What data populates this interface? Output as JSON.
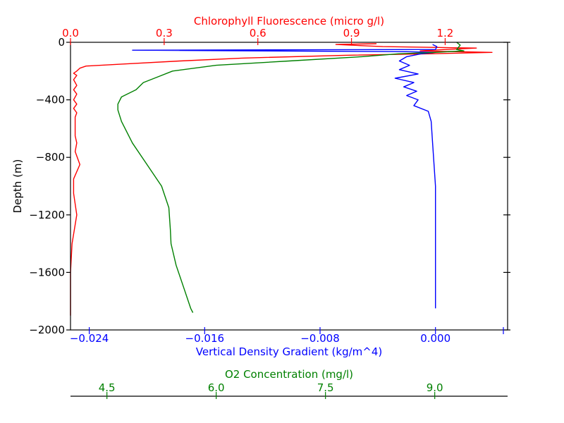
{
  "chart_data": {
    "type": "line",
    "y_axis": {
      "label": "Depth (m)",
      "range": [
        -2000,
        0
      ],
      "ticks": [
        -2000,
        -1600,
        -1200,
        -800,
        -400,
        0
      ],
      "tick_labels": [
        "−2000",
        "−1600",
        "−1200",
        "−800",
        "−400",
        "0"
      ]
    },
    "x_axes": [
      {
        "id": "chl",
        "label": "Chlorophyll Fluorescence (micro g/l)",
        "position": "top",
        "color": "#ff0000",
        "range": [
          0.0,
          1.4
        ],
        "ticks": [
          0.0,
          0.3,
          0.6,
          0.9,
          1.2
        ],
        "tick_labels": [
          "0.0",
          "0.3",
          "0.6",
          "0.9",
          "1.2"
        ]
      },
      {
        "id": "density",
        "label": "Vertical Density Gradient (kg/m^4)",
        "position": "bottom",
        "color": "#0000ff",
        "range": [
          -0.0253,
          0.005
        ],
        "ticks": [
          -0.024,
          -0.016,
          -0.008,
          0.0
        ],
        "tick_labels": [
          "−0.024",
          "−0.016",
          "−0.008",
          "0.000"
        ]
      },
      {
        "id": "o2",
        "label": "O2 Concentration (mg/l)",
        "position": "bottom-offset",
        "color": "#008000",
        "range": [
          4.0,
          10.0
        ],
        "ticks": [
          4.5,
          6.0,
          7.5,
          9.0
        ],
        "tick_labels": [
          "4.5",
          "6.0",
          "7.5",
          "9.0"
        ]
      }
    ],
    "series": [
      {
        "axis": "chl",
        "color": "#ff0000",
        "points": [
          [
            0.98,
            -10
          ],
          [
            0.85,
            -15
          ],
          [
            1.0,
            -30
          ],
          [
            1.3,
            -40
          ],
          [
            1.2,
            -50
          ],
          [
            1.12,
            -60
          ],
          [
            1.35,
            -70
          ],
          [
            1.15,
            -80
          ],
          [
            0.88,
            -90
          ],
          [
            0.55,
            -110
          ],
          [
            0.35,
            -130
          ],
          [
            0.18,
            -150
          ],
          [
            0.05,
            -165
          ],
          [
            0.03,
            -180
          ],
          [
            0.02,
            -200
          ],
          [
            0.01,
            -215
          ],
          [
            0.02,
            -230
          ],
          [
            0.01,
            -260
          ],
          [
            0.02,
            -300
          ],
          [
            0.01,
            -330
          ],
          [
            0.02,
            -360
          ],
          [
            0.01,
            -400
          ],
          [
            0.02,
            -430
          ],
          [
            0.01,
            -460
          ],
          [
            0.02,
            -490
          ],
          [
            0.015,
            -520
          ],
          [
            0.015,
            -650
          ],
          [
            0.02,
            -700
          ],
          [
            0.015,
            -760
          ],
          [
            0.03,
            -850
          ],
          [
            0.01,
            -950
          ],
          [
            0.01,
            -1050
          ],
          [
            0.02,
            -1200
          ],
          [
            0.005,
            -1400
          ],
          [
            0.0,
            -1600
          ],
          [
            0.0,
            -1900
          ]
        ]
      },
      {
        "axis": "density",
        "color": "#0000ff",
        "points": [
          [
            -0.0002,
            -15
          ],
          [
            0.0001,
            -30
          ],
          [
            0.0,
            -50
          ],
          [
            -0.021,
            -55
          ],
          [
            -0.002,
            -65
          ],
          [
            0.0,
            -70
          ],
          [
            -0.001,
            -80
          ],
          [
            -0.002,
            -100
          ],
          [
            -0.0025,
            -130
          ],
          [
            -0.0018,
            -160
          ],
          [
            -0.0025,
            -190
          ],
          [
            -0.0012,
            -220
          ],
          [
            -0.0028,
            -250
          ],
          [
            -0.0015,
            -280
          ],
          [
            -0.0022,
            -310
          ],
          [
            -0.0013,
            -340
          ],
          [
            -0.002,
            -370
          ],
          [
            -0.0012,
            -400
          ],
          [
            -0.0015,
            -440
          ],
          [
            -0.0005,
            -480
          ],
          [
            -0.0003,
            -550
          ],
          [
            -0.0002,
            -700
          ],
          [
            0.0,
            -1000
          ],
          [
            0.0,
            -1500
          ],
          [
            0.0,
            -1850
          ]
        ]
      },
      {
        "axis": "o2",
        "color": "#008000",
        "points": [
          [
            9.3,
            0
          ],
          [
            9.35,
            -20
          ],
          [
            9.3,
            -50
          ],
          [
            9.4,
            -60
          ],
          [
            9.0,
            -70
          ],
          [
            8.5,
            -80
          ],
          [
            8.0,
            -100
          ],
          [
            7.0,
            -130
          ],
          [
            6.0,
            -160
          ],
          [
            5.4,
            -200
          ],
          [
            5.2,
            -240
          ],
          [
            5.0,
            -280
          ],
          [
            4.9,
            -330
          ],
          [
            4.7,
            -380
          ],
          [
            4.65,
            -430
          ],
          [
            4.65,
            -470
          ],
          [
            4.7,
            -550
          ],
          [
            4.85,
            -700
          ],
          [
            5.05,
            -850
          ],
          [
            5.25,
            -1000
          ],
          [
            5.35,
            -1150
          ],
          [
            5.37,
            -1300
          ],
          [
            5.38,
            -1400
          ],
          [
            5.45,
            -1550
          ],
          [
            5.55,
            -1700
          ],
          [
            5.65,
            -1850
          ],
          [
            5.68,
            -1880
          ]
        ]
      }
    ]
  }
}
